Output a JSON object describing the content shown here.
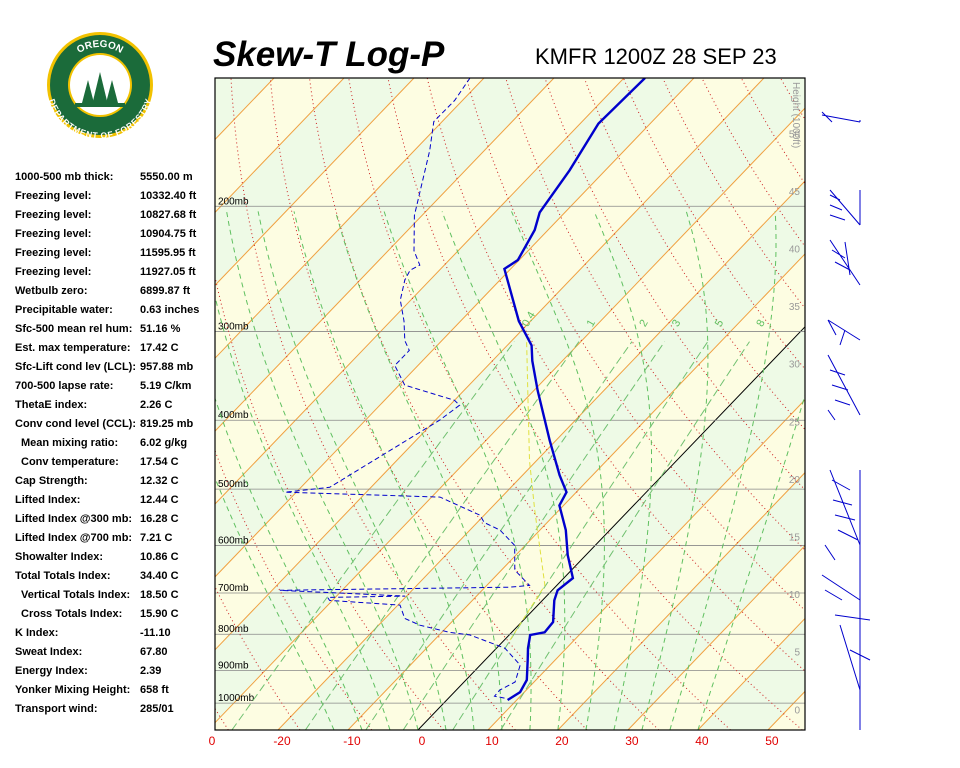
{
  "header": {
    "title": "Skew-T Log-P",
    "station": "KMFR 1200Z 28 SEP 23"
  },
  "logo": {
    "top": "OREGON",
    "bottom": "DEPARTMENT OF FORESTRY"
  },
  "indices": [
    [
      "1000-500 mb thick:",
      "5550.00 m"
    ],
    [
      "Freezing level:",
      "10332.40 ft"
    ],
    [
      "Freezing level:",
      "10827.68 ft"
    ],
    [
      "Freezing level:",
      "10904.75 ft"
    ],
    [
      "Freezing level:",
      "11595.95 ft"
    ],
    [
      "Freezing level:",
      "11927.05 ft"
    ],
    [
      "Wetbulb zero:",
      "6899.87 ft"
    ],
    [
      "Precipitable water:",
      "0.63 inches"
    ],
    [
      "Sfc-500 mean rel hum:",
      "51.16 %"
    ],
    [
      "Est. max temperature:",
      "17.42 C"
    ],
    [
      "Sfc-Lift cond lev (LCL):",
      "957.88 mb"
    ],
    [
      "700-500 lapse rate:",
      "5.19 C/km"
    ],
    [
      "ThetaE index:",
      "2.26 C"
    ],
    [
      "Conv cond level (CCL):",
      "819.25 mb"
    ],
    [
      "Mean mixing ratio:",
      "6.02 g/kg"
    ],
    [
      "Conv temperature:",
      "17.54 C"
    ],
    [
      "Cap Strength:",
      "12.32 C"
    ],
    [
      "Lifted Index:",
      "12.44 C"
    ],
    [
      "Lifted Index @300 mb:",
      "16.28 C"
    ],
    [
      "Lifted Index @700 mb:",
      "7.21 C"
    ],
    [
      "Showalter Index:",
      "10.86 C"
    ],
    [
      "Total Totals Index:",
      "34.40 C"
    ],
    [
      "Vertical Totals Index:",
      "18.50 C"
    ],
    [
      "Cross Totals Index:",
      "15.90 C"
    ],
    [
      "K Index:",
      "-11.10"
    ],
    [
      "Sweat Index:",
      "67.80"
    ],
    [
      "Energy Index:",
      "2.39"
    ],
    [
      "Yonker Mixing Height:",
      "658 ft"
    ],
    [
      "Transport wind:",
      "285/01"
    ]
  ],
  "chart_data": {
    "type": "skewt",
    "xlim": [
      -29,
      55.3
    ],
    "ylim": [
      1091,
      132
    ],
    "xticks": [
      {
        "value": -30,
        "label": "0"
      },
      -20,
      -10,
      0,
      10,
      20,
      30,
      40,
      50
    ],
    "yticks": [
      {
        "value": 200,
        "label": "200mb"
      },
      {
        "value": 300,
        "label": "300mb"
      },
      {
        "value": 400,
        "label": "400mb"
      },
      {
        "value": 500,
        "label": "500mb"
      },
      {
        "value": 600,
        "label": "600mb"
      },
      {
        "value": 700,
        "label": "700mb"
      },
      {
        "value": 800,
        "label": "800mb"
      },
      {
        "value": 900,
        "label": "900mb"
      },
      {
        "value": 1000,
        "label": "1000mb"
      }
    ],
    "height_label": "Height (1000ft)",
    "height_lim": [
      -1.8,
      54.8
    ],
    "height_ticks": [
      0,
      5,
      10,
      15,
      20,
      25,
      30,
      35,
      40,
      45,
      50
    ],
    "mixing_ratios": [
      0.4,
      1,
      2,
      3,
      5,
      8
    ],
    "isotherm_color": "#f0a040",
    "zero_isotherm_color": "#000000",
    "dry_adiabat_color": "#cc2020",
    "moist_adiabat_color": "#60c060",
    "series": [
      {
        "color": "#0000cc",
        "pressure": [
          990,
          965,
          928,
          870,
          837,
          802,
          795,
          769,
          717,
          694,
          667,
          619,
          571,
          527,
          505,
          478,
          427,
          363,
          330,
          314,
          290,
          245,
          238,
          216,
          204,
          178,
          153,
          132
        ],
        "values": [
          8.7,
          9.4,
          8.7,
          6.1,
          4.5,
          3.0,
          4.7,
          4.5,
          1.7,
          0.8,
          1.3,
          -2.6,
          -6.3,
          -10.6,
          -11.4,
          -14.7,
          -20.9,
          -29.5,
          -34.3,
          -36.5,
          -41.7,
          -50.9,
          -50.2,
          -51.9,
          -53.6,
          -55.1,
          -57.4,
          -57.0
        ]
      },
      {
        "color": "#0000cc",
        "dashed": true,
        "pressure": [
          984,
          978,
          959,
          934,
          884,
          837,
          802,
          795,
          777,
          760,
          728,
          717,
          710,
          707,
          694,
          687,
          683,
          650,
          600,
          571,
          557,
          544,
          513,
          505,
          497,
          400,
          381,
          375,
          357,
          335,
          319,
          309,
          290,
          271,
          254,
          246,
          242,
          231,
          206,
          167,
          152,
          142,
          132
        ],
        "values": [
          8.0,
          6.3,
          6.2,
          7.3,
          5.7,
          1.2,
          -5.6,
          -8.9,
          -14.1,
          -17.2,
          -19.7,
          -30.4,
          -31.1,
          -20.2,
          -38.9,
          -6.5,
          -3.9,
          -8.1,
          -11.5,
          -15.7,
          -19.0,
          -20.6,
          -28.8,
          -51.6,
          -45.9,
          -39.4,
          -38.6,
          -40.0,
          -49.2,
          -53.3,
          -53.3,
          -55.3,
          -58.1,
          -61.5,
          -63.6,
          -64.2,
          -63.5,
          -66.3,
          -71.1,
          -77.8,
          -81.2,
          -81.1,
          -82.0
        ]
      },
      {
        "color": "#e0e040",
        "dashed": true,
        "pressure": [
          815,
          683,
          535,
          456,
          375,
          309
        ],
        "values": [
          0.8,
          -1.7,
          -13.5,
          -21.0,
          -29.5,
          -37.9
        ]
      }
    ]
  }
}
